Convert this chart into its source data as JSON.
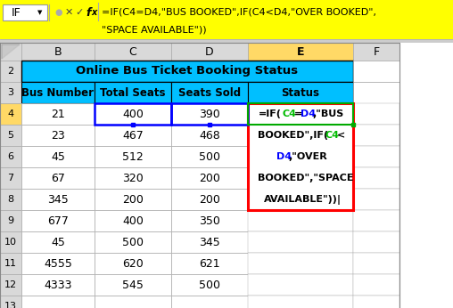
{
  "cell_name": "IF",
  "formula_line1": "=IF(C4=D4,\"BUS BOOKED\",IF(C4<D4,\"OVER BOOKED\",",
  "formula_line2": "\"SPACE AVAILABLE\"))",
  "title": "Online Bus Ticket Booking Status",
  "headers": [
    "Bus Number",
    "Total Seats",
    "Seats Sold",
    "Status"
  ],
  "col_labels": [
    "B",
    "C",
    "D",
    "E",
    "F"
  ],
  "data": [
    [
      21,
      400,
      390
    ],
    [
      23,
      467,
      468
    ],
    [
      45,
      512,
      500
    ],
    [
      67,
      320,
      200
    ],
    [
      345,
      200,
      200
    ],
    [
      677,
      400,
      350
    ],
    [
      45,
      500,
      345
    ],
    [
      4555,
      620,
      621
    ],
    [
      4333,
      545,
      500
    ]
  ],
  "formula_lines": [
    [
      [
        "=IF(",
        "black"
      ],
      [
        "C4",
        "#00BB00"
      ],
      [
        "=",
        "black"
      ],
      [
        "D4",
        "#0000FF"
      ],
      [
        ",\"BUS",
        "black"
      ]
    ],
    [
      [
        "BOOKED\",IF(",
        "black"
      ],
      [
        "C4",
        "#00BB00"
      ],
      [
        "<",
        "black"
      ]
    ],
    [
      [
        "D4",
        "#0000FF"
      ],
      [
        ",\"OVER",
        "black"
      ]
    ],
    [
      [
        "BOOKED\",\"SPACE",
        "black"
      ]
    ],
    [
      [
        "AVAILABLE\"))|",
        "black"
      ]
    ]
  ],
  "header_bg": "#00BFFF",
  "title_bg": "#00BFFF",
  "formula_bar_bg": "#FFFF00",
  "e_col_header_bg": "#FFD966",
  "row_num_bg": "#D9D9D9",
  "col_header_bg": "#D9D9D9",
  "selected_col_bg": "#FFD966",
  "white": "#FFFFFF",
  "red_border": "#FF0000",
  "blue_border": "#0000FF",
  "green_border": "#00AA00",
  "dark_border": "#000000",
  "light_border": "#AAAAAA",
  "fig_bg": "#FFFFFF"
}
